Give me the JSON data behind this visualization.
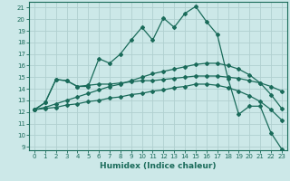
{
  "xlabel": "Humidex (Indice chaleur)",
  "background_color": "#cce8e8",
  "grid_color": "#b0d0d0",
  "line_color": "#1a6b5a",
  "xlim": [
    -0.5,
    23.5
  ],
  "ylim": [
    8.7,
    21.5
  ],
  "yticks": [
    9,
    10,
    11,
    12,
    13,
    14,
    15,
    16,
    17,
    18,
    19,
    20,
    21
  ],
  "xticks": [
    0,
    1,
    2,
    3,
    4,
    5,
    6,
    7,
    8,
    9,
    10,
    11,
    12,
    13,
    14,
    15,
    16,
    17,
    18,
    19,
    20,
    21,
    22,
    23
  ],
  "series": [
    [
      12.2,
      12.8,
      14.8,
      14.7,
      14.2,
      14.2,
      16.6,
      16.2,
      17.0,
      18.2,
      19.3,
      18.2,
      20.1,
      19.3,
      20.5,
      21.1,
      19.8,
      18.7,
      14.9,
      11.8,
      12.5,
      12.5,
      10.2,
      8.8
    ],
    [
      12.2,
      12.8,
      14.8,
      14.7,
      14.2,
      14.3,
      14.4,
      14.4,
      14.5,
      14.6,
      14.7,
      14.7,
      14.8,
      14.9,
      15.0,
      15.1,
      15.1,
      15.1,
      15.0,
      14.9,
      14.7,
      14.5,
      14.2,
      13.8
    ],
    [
      12.2,
      12.4,
      12.7,
      13.0,
      13.3,
      13.6,
      13.9,
      14.2,
      14.4,
      14.7,
      15.0,
      15.3,
      15.5,
      15.7,
      15.9,
      16.1,
      16.2,
      16.2,
      16.0,
      15.7,
      15.2,
      14.5,
      13.5,
      12.3
    ],
    [
      12.2,
      12.3,
      12.4,
      12.6,
      12.7,
      12.9,
      13.0,
      13.2,
      13.3,
      13.5,
      13.6,
      13.8,
      13.9,
      14.1,
      14.2,
      14.4,
      14.4,
      14.3,
      14.1,
      13.8,
      13.4,
      12.9,
      12.2,
      11.3
    ]
  ]
}
